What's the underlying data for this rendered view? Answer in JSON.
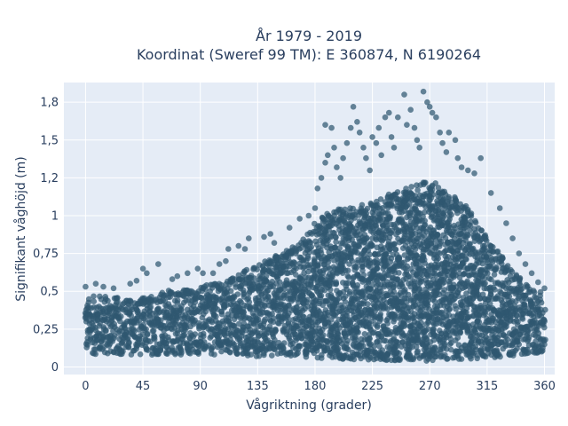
{
  "chart_data": {
    "type": "scatter",
    "title_line1": "År 1979 - 2019",
    "title_line2": "Koordinat (Sweref 99 TM): E 360874, N 6190264",
    "xlabel": "Vågriktning (grader)",
    "ylabel": "Signifikant våghöjd (m)",
    "xlim": [
      -17,
      368
    ],
    "ylim": [
      -0.05,
      1.88
    ],
    "x_ticks": [
      0,
      45,
      90,
      135,
      180,
      225,
      270,
      315,
      360
    ],
    "x_tick_labels": [
      "0",
      "45",
      "90",
      "135",
      "180",
      "225",
      "270",
      "315",
      "360"
    ],
    "y_ticks": [
      0,
      0.25,
      0.5,
      0.75,
      1,
      1.25,
      1.5,
      1.75
    ],
    "y_tick_labels": [
      "0",
      "0,25",
      "0,5",
      "0,75",
      "1",
      "1,2",
      "1,5",
      "1,8"
    ],
    "grid": true,
    "marker_color": "#2f5870",
    "envelope_x": [
      0,
      10,
      20,
      30,
      45,
      60,
      75,
      90,
      105,
      120,
      135,
      150,
      165,
      180,
      195,
      210,
      225,
      240,
      255,
      270,
      285,
      300,
      315,
      330,
      345,
      360
    ],
    "envelope_min": [
      0.09,
      0.08,
      0.08,
      0.08,
      0.08,
      0.08,
      0.08,
      0.08,
      0.08,
      0.08,
      0.07,
      0.07,
      0.07,
      0.06,
      0.05,
      0.05,
      0.04,
      0.04,
      0.04,
      0.04,
      0.05,
      0.05,
      0.06,
      0.07,
      0.08,
      0.1
    ],
    "envelope_max": [
      0.45,
      0.48,
      0.47,
      0.45,
      0.46,
      0.5,
      0.52,
      0.53,
      0.56,
      0.62,
      0.68,
      0.74,
      0.8,
      0.95,
      1.05,
      1.05,
      1.1,
      1.15,
      1.2,
      1.25,
      1.15,
      1.05,
      0.85,
      0.7,
      0.55,
      0.48
    ],
    "outliers": [
      [
        0,
        0.53
      ],
      [
        8,
        0.55
      ],
      [
        14,
        0.53
      ],
      [
        22,
        0.52
      ],
      [
        35,
        0.55
      ],
      [
        40,
        0.57
      ],
      [
        45,
        0.65
      ],
      [
        48,
        0.62
      ],
      [
        57,
        0.68
      ],
      [
        68,
        0.58
      ],
      [
        72,
        0.6
      ],
      [
        80,
        0.62
      ],
      [
        88,
        0.65
      ],
      [
        92,
        0.62
      ],
      [
        100,
        0.62
      ],
      [
        105,
        0.68
      ],
      [
        110,
        0.7
      ],
      [
        112,
        0.78
      ],
      [
        120,
        0.8
      ],
      [
        125,
        0.78
      ],
      [
        128,
        0.85
      ],
      [
        140,
        0.86
      ],
      [
        145,
        0.88
      ],
      [
        148,
        0.82
      ],
      [
        160,
        0.92
      ],
      [
        168,
        0.98
      ],
      [
        175,
        1.0
      ],
      [
        180,
        1.05
      ],
      [
        182,
        1.18
      ],
      [
        185,
        1.25
      ],
      [
        188,
        1.35
      ],
      [
        190,
        1.4
      ],
      [
        188,
        1.6
      ],
      [
        193,
        1.58
      ],
      [
        195,
        1.45
      ],
      [
        197,
        1.32
      ],
      [
        200,
        1.25
      ],
      [
        202,
        1.38
      ],
      [
        205,
        1.48
      ],
      [
        208,
        1.58
      ],
      [
        210,
        1.72
      ],
      [
        213,
        1.62
      ],
      [
        215,
        1.55
      ],
      [
        218,
        1.45
      ],
      [
        220,
        1.38
      ],
      [
        223,
        1.3
      ],
      [
        225,
        1.52
      ],
      [
        228,
        1.48
      ],
      [
        230,
        1.58
      ],
      [
        232,
        1.4
      ],
      [
        235,
        1.65
      ],
      [
        238,
        1.68
      ],
      [
        240,
        1.52
      ],
      [
        242,
        1.45
      ],
      [
        245,
        1.65
      ],
      [
        250,
        1.8
      ],
      [
        252,
        1.6
      ],
      [
        255,
        1.7
      ],
      [
        258,
        1.58
      ],
      [
        260,
        1.5
      ],
      [
        262,
        1.45
      ],
      [
        265,
        1.82
      ],
      [
        268,
        1.75
      ],
      [
        270,
        1.72
      ],
      [
        272,
        1.68
      ],
      [
        275,
        1.65
      ],
      [
        278,
        1.55
      ],
      [
        280,
        1.48
      ],
      [
        283,
        1.42
      ],
      [
        285,
        1.55
      ],
      [
        290,
        1.5
      ],
      [
        292,
        1.38
      ],
      [
        295,
        1.32
      ],
      [
        300,
        1.3
      ],
      [
        305,
        1.28
      ],
      [
        310,
        1.38
      ],
      [
        318,
        1.15
      ],
      [
        325,
        1.05
      ],
      [
        330,
        0.95
      ],
      [
        335,
        0.85
      ],
      [
        340,
        0.75
      ],
      [
        345,
        0.68
      ],
      [
        350,
        0.62
      ],
      [
        355,
        0.56
      ],
      [
        360,
        0.52
      ]
    ]
  }
}
